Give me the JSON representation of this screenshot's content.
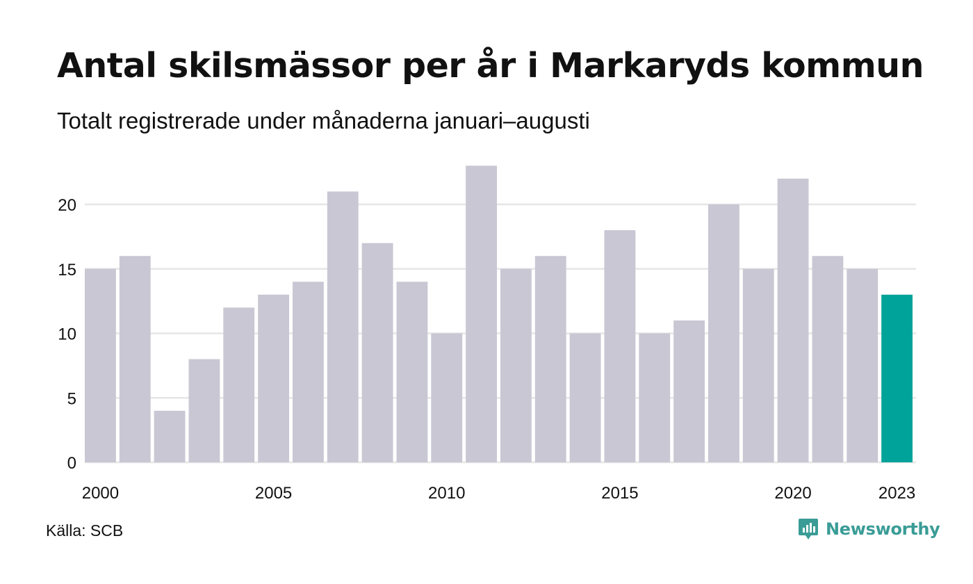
{
  "header": {
    "title": "Antal skilsmässor per år i Markaryds kommun",
    "subtitle": "Totalt registrerade under månaderna januari–augusti"
  },
  "footer": {
    "source": "Källa: SCB",
    "brand": "Newsworthy"
  },
  "colors": {
    "bar": "#c8c7d3",
    "highlight": "#00a39a",
    "grid": "#e6e6e6",
    "brand": "#3a9c96"
  },
  "chart_data": {
    "type": "bar",
    "categories": [
      "2000",
      "2001",
      "2002",
      "2003",
      "2004",
      "2005",
      "2006",
      "2007",
      "2008",
      "2009",
      "2010",
      "2011",
      "2012",
      "2013",
      "2014",
      "2015",
      "2016",
      "2017",
      "2018",
      "2019",
      "2020",
      "2021",
      "2022",
      "2023"
    ],
    "values": [
      15,
      16,
      4,
      8,
      12,
      13,
      14,
      21,
      17,
      14,
      10,
      23,
      15,
      16,
      10,
      18,
      10,
      11,
      20,
      15,
      22,
      16,
      15,
      13
    ],
    "highlight_index": 23,
    "x_tick_labels": [
      "2000",
      "2005",
      "2010",
      "2015",
      "2020",
      "2023"
    ],
    "y_ticks": [
      0,
      5,
      10,
      15,
      20
    ],
    "ylim": [
      0,
      23
    ],
    "grid": true,
    "legend": "none"
  }
}
